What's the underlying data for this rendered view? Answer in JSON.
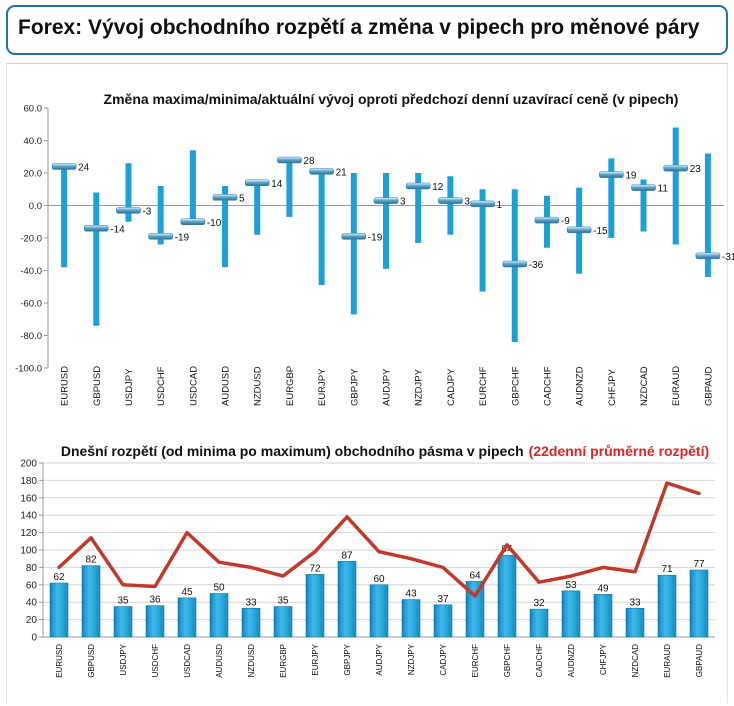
{
  "header": {
    "title": "Forex: Vývoj obchodního rozpětí a změna v pipech pro měnové páry"
  },
  "colors": {
    "accent": "#1f6fb3",
    "bar": "#1ba0d8",
    "line": "#c0392b",
    "marker": "#5aa9cf",
    "highlight": "#e32222"
  },
  "chart_data": [
    {
      "type": "bar",
      "subtype": "high-low-close",
      "title": "Změna maxima/minima/aktuální vývoj oproti předchozí denní uzavírací ceně (v pipech)",
      "categories": [
        "EURUSD",
        "GBPUSD",
        "USDJPY",
        "USDCHF",
        "USDCAD",
        "AUDUSD",
        "NZDUSD",
        "EURGBP",
        "EURJPY",
        "GBPJPY",
        "AUDJPY",
        "NZDJPY",
        "CADJPY",
        "EURCHF",
        "GBPCHF",
        "CADCHF",
        "AUDNZD",
        "CHFJPY",
        "NZDCAD",
        "EURAUD",
        "GBPAUD"
      ],
      "series": [
        {
          "values": [
            25,
            8,
            26,
            12,
            34,
            12,
            15,
            29,
            22,
            20,
            20,
            20,
            18,
            10,
            10,
            6,
            11,
            29,
            16,
            48,
            32
          ]
        },
        {
          "values": [
            -38,
            -74,
            -10,
            -24,
            -10,
            -38,
            -18,
            -7,
            -49,
            -67,
            -39,
            -23,
            -18,
            -53,
            -84,
            -26,
            -42,
            -20,
            -16,
            -24,
            -44
          ]
        },
        {
          "values": [
            24,
            -14,
            -3,
            -19,
            -10,
            5,
            14,
            28,
            21,
            -19,
            3,
            12,
            3,
            1,
            -36,
            -9,
            -15,
            19,
            11,
            23,
            -31
          ]
        }
      ],
      "close_labels": [
        "24",
        "-14",
        "-3",
        "-19",
        "-10",
        "5",
        "14",
        "28",
        "21",
        "-19",
        "3",
        "12",
        "3",
        "1",
        "-36",
        "-9",
        "-15",
        "19",
        "11",
        "23",
        "-31"
      ],
      "ylim": [
        -100,
        60
      ],
      "yticks": [
        "60.0",
        "40.0",
        "20.0",
        "0.0",
        "-20.0",
        "-40.0",
        "-60.0",
        "-80.0",
        "-100.0"
      ],
      "grid": false
    },
    {
      "type": "bar",
      "title": "Dnešní rozpětí (od minima po maximum) obchodního pásma v pipech",
      "title_highlight": "(22denní průměrné rozpětí)",
      "categories": [
        "EURUSD",
        "GBPUSD",
        "USDJPY",
        "USDCHF",
        "USDCAD",
        "AUDUSD",
        "NZDUSD",
        "EURGBP",
        "EURJPY",
        "GBPJPY",
        "AUDJPY",
        "NZDJPY",
        "CADJPY",
        "EURCHF",
        "GBPCHF",
        "CADCHF",
        "AUDNZD",
        "CHFJPY",
        "NZDCAD",
        "EURAUD",
        "GBPAUD"
      ],
      "series": [
        {
          "type": "bar",
          "values": [
            62,
            82,
            35,
            36,
            45,
            50,
            33,
            35,
            72,
            87,
            60,
            43,
            37,
            64,
            94,
            32,
            53,
            49,
            33,
            71,
            77
          ]
        },
        {
          "type": "line",
          "values": [
            80,
            114,
            60,
            58,
            120,
            86,
            80,
            70,
            98,
            138,
            98,
            90,
            80,
            47,
            106,
            63,
            70,
            80,
            75,
            177,
            165
          ]
        }
      ],
      "bar_labels": [
        "62",
        "82",
        "35",
        "36",
        "45",
        "50",
        "33",
        "35",
        "72",
        "87",
        "60",
        "43",
        "37",
        "64",
        "94",
        "32",
        "53",
        "49",
        "33",
        "71",
        "77"
      ],
      "ylim": [
        0,
        200
      ],
      "yticks": [
        "200",
        "180",
        "160",
        "140",
        "120",
        "100",
        "80",
        "60",
        "40",
        "20",
        "0"
      ],
      "grid": true
    }
  ]
}
